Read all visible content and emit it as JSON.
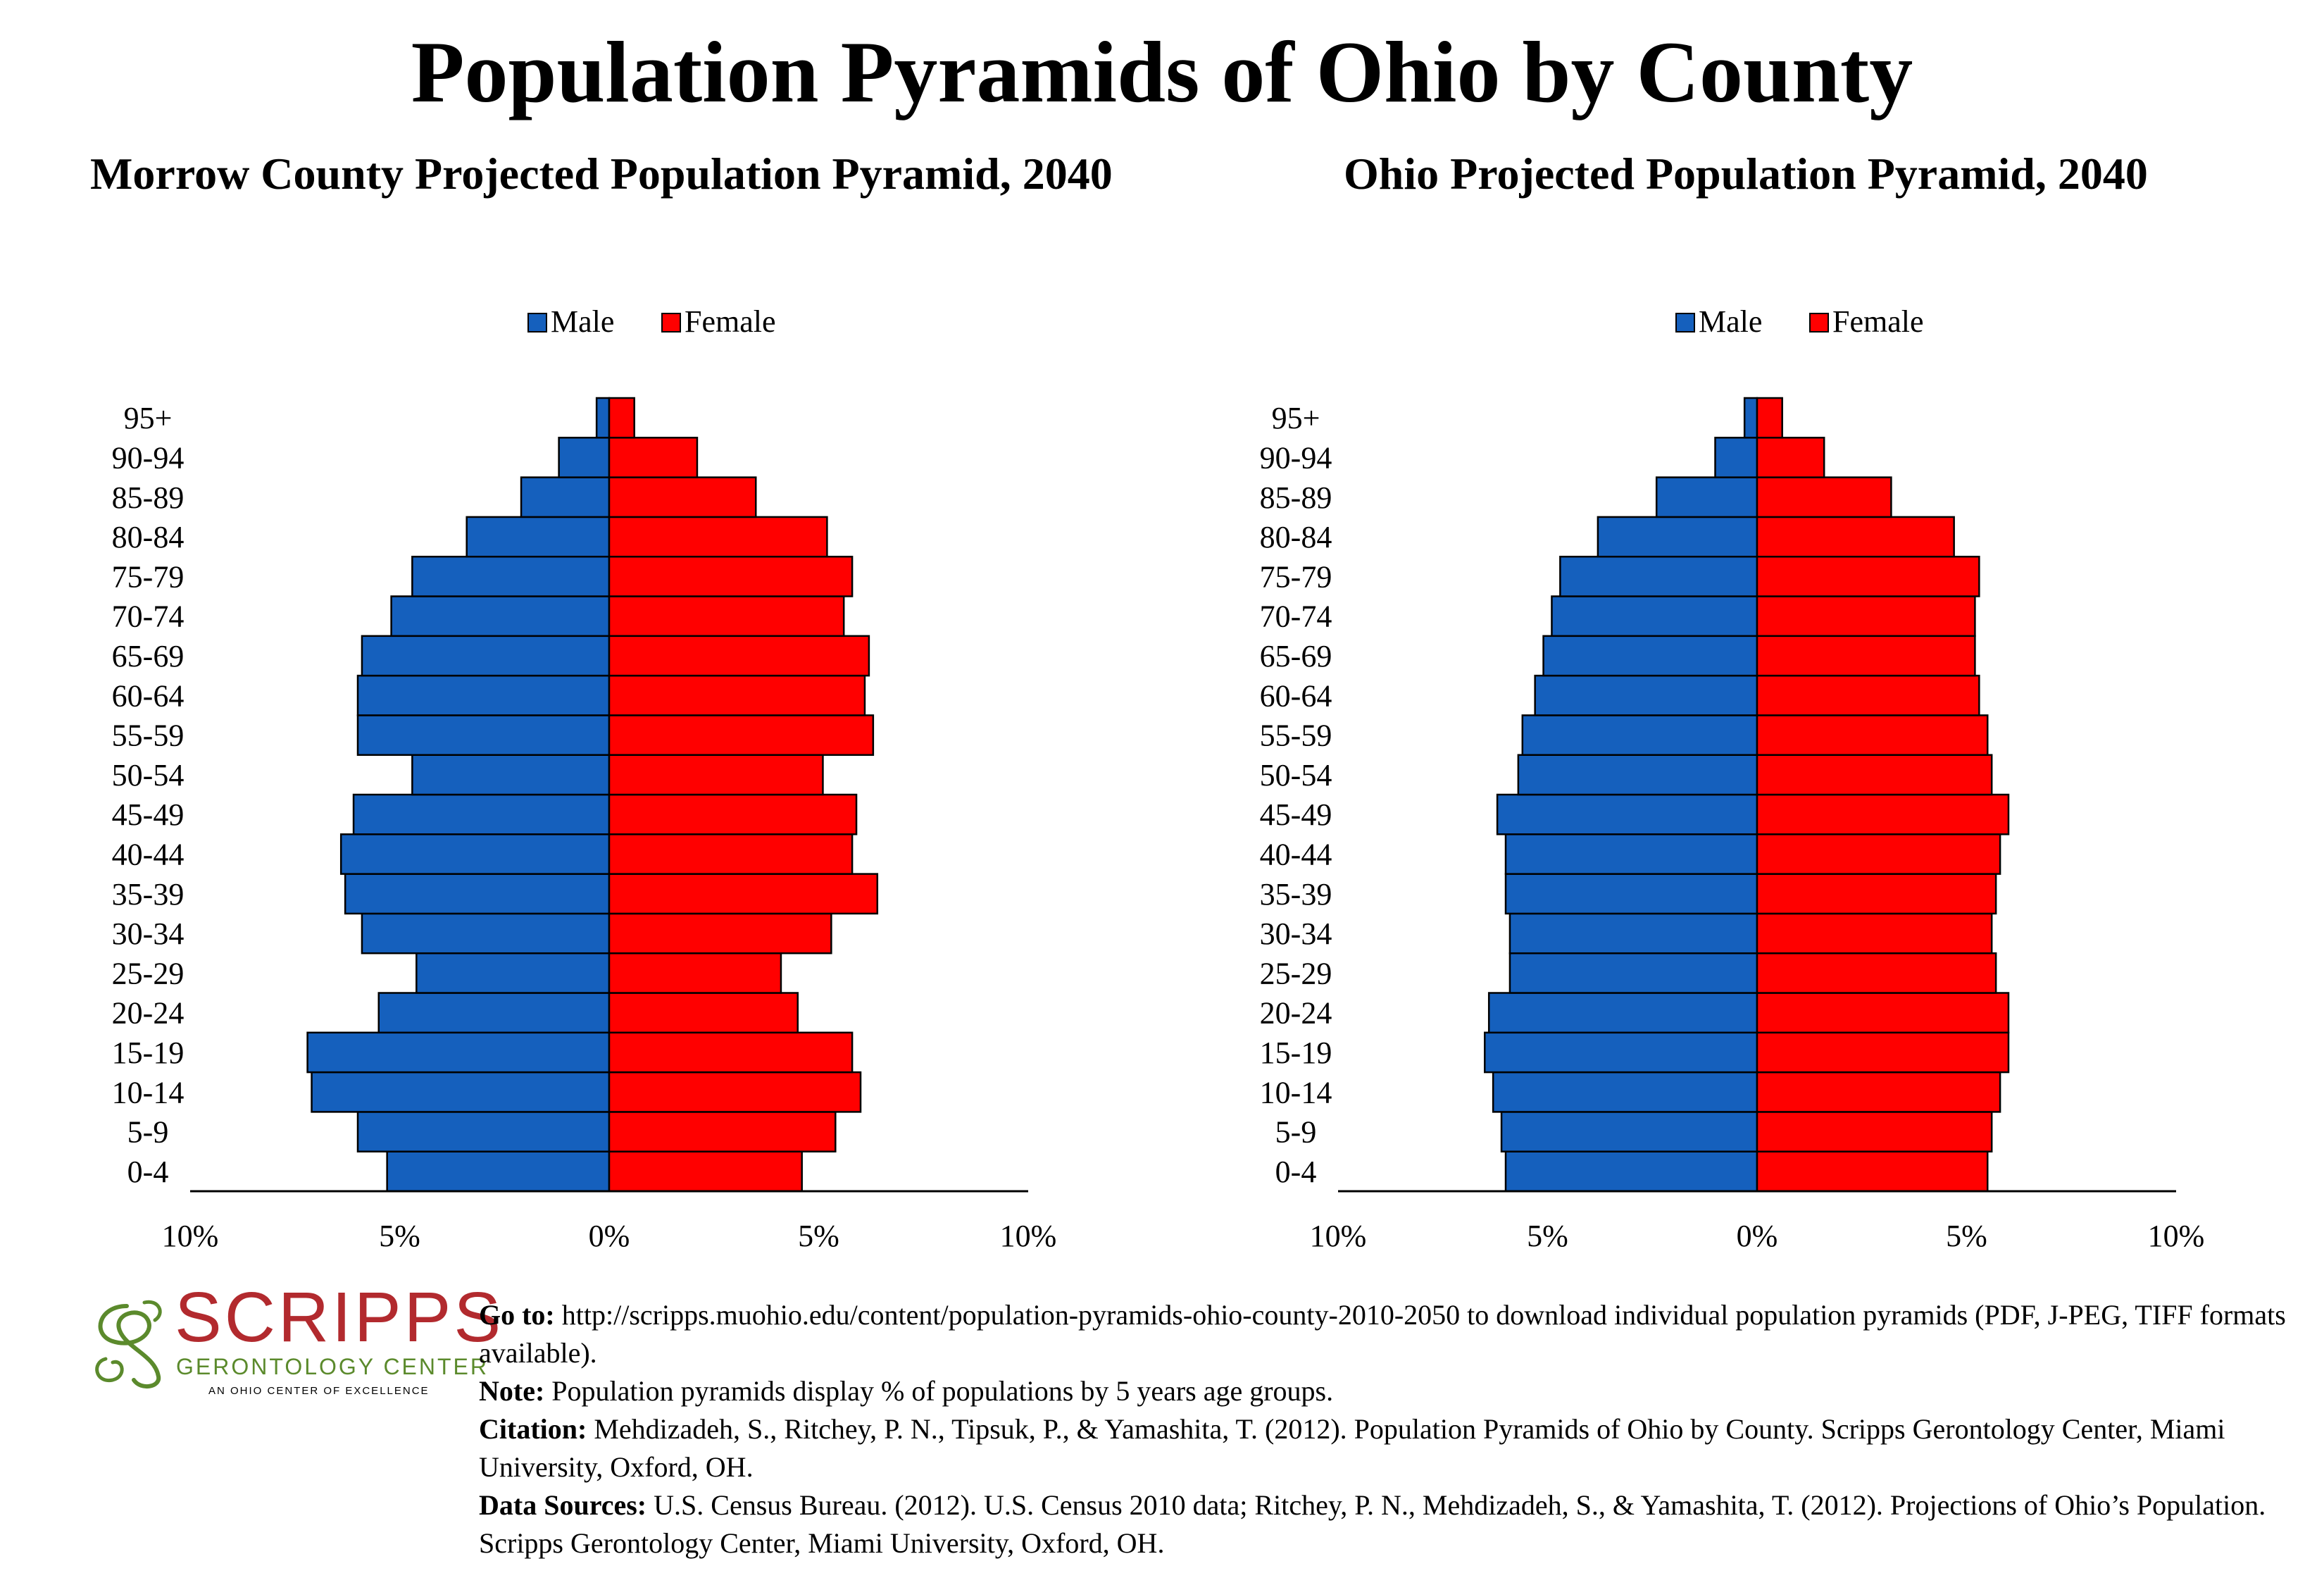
{
  "title": "Population Pyramids of Ohio by County",
  "left_title": "Morrow County Projected Population Pyramid, 2040",
  "right_title": "Ohio Projected Population Pyramid, 2040",
  "legend": {
    "male": "Male",
    "female": "Female"
  },
  "colors": {
    "male": "#1560bd",
    "female": "#ff0000",
    "outline": "#000000"
  },
  "x_ticks": [
    "10%",
    "5%",
    "0%",
    "5%",
    "10%"
  ],
  "chart_data": [
    {
      "type": "bar",
      "orientation": "horizontal-pyramid",
      "title": "Morrow County Projected Population Pyramid, 2040",
      "categories": [
        "0-4",
        "5-9",
        "10-14",
        "15-19",
        "20-24",
        "25-29",
        "30-34",
        "35-39",
        "40-44",
        "45-49",
        "50-54",
        "55-59",
        "60-64",
        "65-69",
        "70-74",
        "75-79",
        "80-84",
        "85-89",
        "90-94",
        "95+"
      ],
      "series": [
        {
          "name": "Male",
          "values": [
            5.3,
            6.0,
            7.1,
            7.2,
            5.5,
            4.6,
            5.9,
            6.3,
            6.4,
            6.1,
            4.7,
            6.0,
            6.0,
            5.9,
            5.2,
            4.7,
            3.4,
            2.1,
            1.2,
            0.3
          ]
        },
        {
          "name": "Female",
          "values": [
            4.6,
            5.4,
            6.0,
            5.8,
            4.5,
            4.1,
            5.3,
            6.4,
            5.8,
            5.9,
            5.1,
            6.3,
            6.1,
            6.2,
            5.6,
            5.8,
            5.2,
            3.5,
            2.1,
            0.6
          ]
        }
      ],
      "xlim": [
        -10,
        10
      ],
      "xlabel": "",
      "ylabel": "",
      "legend_position": "top"
    },
    {
      "type": "bar",
      "orientation": "horizontal-pyramid",
      "title": "Ohio Projected Population Pyramid, 2040",
      "categories": [
        "0-4",
        "5-9",
        "10-14",
        "15-19",
        "20-24",
        "25-29",
        "30-34",
        "35-39",
        "40-44",
        "45-49",
        "50-54",
        "55-59",
        "60-64",
        "65-69",
        "70-74",
        "75-79",
        "80-84",
        "85-89",
        "90-94",
        "95+"
      ],
      "series": [
        {
          "name": "Male",
          "values": [
            6.0,
            6.1,
            6.3,
            6.5,
            6.4,
            5.9,
            5.9,
            6.0,
            6.0,
            6.2,
            5.7,
            5.6,
            5.3,
            5.1,
            4.9,
            4.7,
            3.8,
            2.4,
            1.0,
            0.3
          ]
        },
        {
          "name": "Female",
          "values": [
            5.5,
            5.6,
            5.8,
            6.0,
            6.0,
            5.7,
            5.6,
            5.7,
            5.8,
            6.0,
            5.6,
            5.5,
            5.3,
            5.2,
            5.2,
            5.3,
            4.7,
            3.2,
            1.6,
            0.6
          ]
        }
      ],
      "xlim": [
        -10,
        10
      ],
      "xlabel": "",
      "ylabel": "",
      "legend_position": "top"
    }
  ],
  "logo": {
    "name": "SCRIPPS",
    "subtitle": "GERONTOLOGY CENTER",
    "tagline": "AN OHIO CENTER OF EXCELLENCE"
  },
  "footer": {
    "goto_label": "Go to:",
    "goto_text": "http://scripps.muohio.edu/content/population-pyramids-ohio-county-2010-2050 to download individual population pyramids (PDF, J-PEG, TIFF formats available).",
    "note_label": "Note:",
    "note_text": "Population pyramids display % of populations by 5 years age groups.",
    "citation_label": "Citation:",
    "citation_text": "Mehdizadeh, S., Ritchey, P. N., Tipsuk, P., & Yamashita, T. (2012). Population Pyramids of Ohio by County. Scripps Gerontology Center, Miami University, Oxford, OH.",
    "sources_label": "Data Sources:",
    "sources_text": "U.S. Census Bureau. (2012). U.S. Census 2010 data; Ritchey, P. N., Mehdizadeh, S., & Yamashita, T. (2012). Projections of Ohio’s Population. Scripps Gerontology Center, Miami University, Oxford, OH."
  }
}
